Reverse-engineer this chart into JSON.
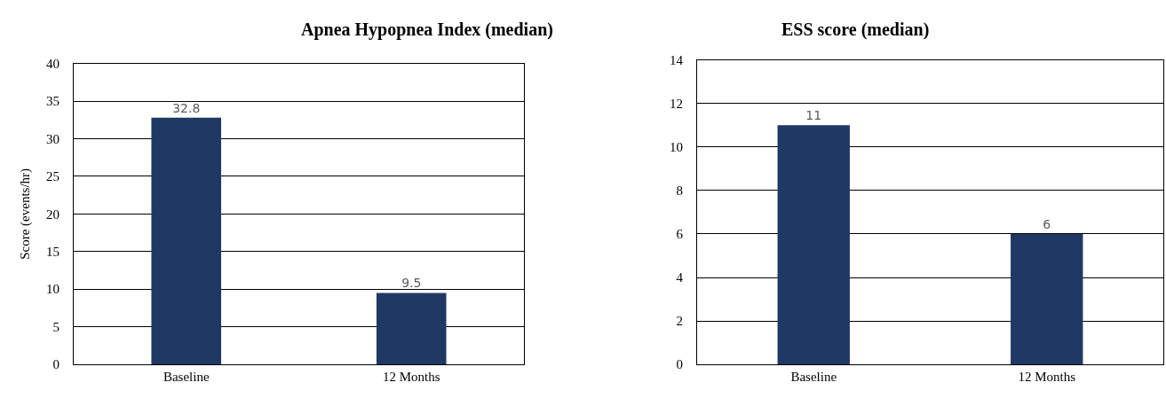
{
  "chart_data": [
    {
      "type": "bar",
      "title": "Apnea Hypopnea Index (median)",
      "ylabel": "Score (events/hr)",
      "categories": [
        "Baseline",
        "12 Months"
      ],
      "values": [
        32.8,
        9.5
      ],
      "color": "#203864",
      "ylim": [
        0,
        40
      ],
      "yticks": [
        0,
        5,
        10,
        15,
        20,
        25,
        30,
        35,
        40
      ],
      "grid": "y",
      "data_labels": true,
      "legend": false
    },
    {
      "type": "bar",
      "title": "ESS score (median)",
      "categories": [
        "Baseline",
        "12 Months"
      ],
      "values": [
        11,
        6
      ],
      "color": "#203864",
      "ylim": [
        0,
        14
      ],
      "yticks": [
        0,
        2,
        4,
        6,
        8,
        10,
        12,
        14
      ],
      "grid": "y",
      "data_labels": true,
      "legend": false
    }
  ]
}
